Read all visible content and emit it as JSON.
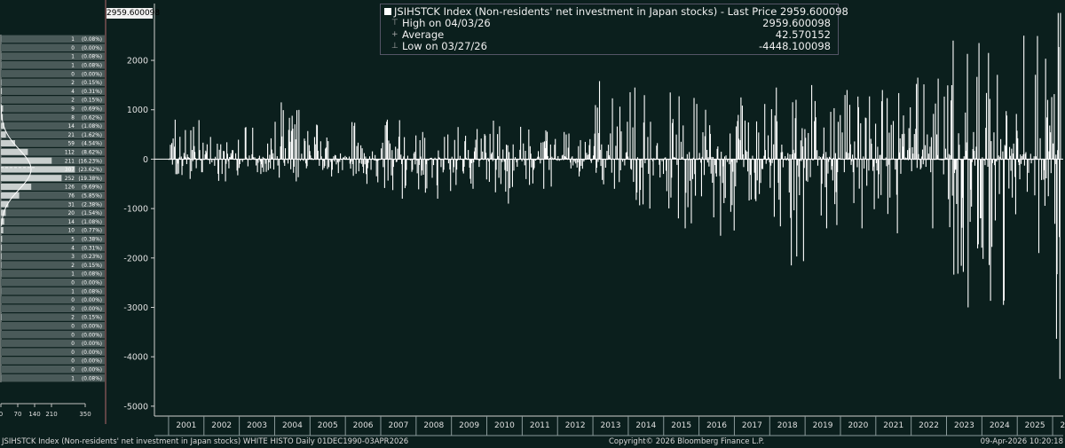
{
  "legend": {
    "title": "JSIHSTCK Index (Non-residents' net investment in Japan stocks) - Last Price",
    "last_price": "2959.600098",
    "high_label": "High on 04/03/26",
    "high_value": "2959.600098",
    "average_label": "Average",
    "average_value": "42.570152",
    "low_label": "Low on 03/27/26",
    "low_value": "-4448.100098"
  },
  "last_price_tag": "2959.600098",
  "footer": {
    "left": "JSIHSTCK Index (Non-residents' net investment in Japan stocks) WHITE HISTO Daily 01DEC1990-03APR2026",
    "center": "Copyright© 2026 Bloomberg Finance L.P.",
    "right": "09-Apr-2026 10:20:18"
  },
  "colors": {
    "background": "#0b1f1d",
    "bars": "#ffffff",
    "histogram_row": "#4a5a59"
  },
  "chart_data": [
    {
      "type": "bar",
      "series": [
        {
          "name": "JSIHSTCK Index",
          "color": "#ffffff"
        }
      ],
      "x_ticks": [
        "2001",
        "2002",
        "2003",
        "2004",
        "2005",
        "2006",
        "2007",
        "2008",
        "2009",
        "2010",
        "2011",
        "2012",
        "2013",
        "2014",
        "2015",
        "2016",
        "2017",
        "2018",
        "2019",
        "2020",
        "2021",
        "2022",
        "2023",
        "2024",
        "2025",
        "2026"
      ],
      "y_ticks": [
        2000,
        1000,
        0,
        -1000,
        -2000,
        -3000,
        -4000,
        -5000
      ],
      "ylim": [
        -5200,
        3150
      ],
      "xlim": [
        2000.6,
        2026.3
      ],
      "grid": false,
      "annual_range": [
        {
          "year": 2001,
          "max": 800,
          "min": -400
        },
        {
          "year": 2002,
          "max": 450,
          "min": -450
        },
        {
          "year": 2003,
          "max": 650,
          "min": -300
        },
        {
          "year": 2004,
          "max": 1150,
          "min": -450
        },
        {
          "year": 2005,
          "max": 700,
          "min": -350
        },
        {
          "year": 2006,
          "max": 750,
          "min": -500
        },
        {
          "year": 2007,
          "max": 800,
          "min": -800
        },
        {
          "year": 2008,
          "max": 550,
          "min": -800
        },
        {
          "year": 2009,
          "max": 650,
          "min": -600
        },
        {
          "year": 2010,
          "max": 780,
          "min": -900
        },
        {
          "year": 2011,
          "max": 600,
          "min": -600
        },
        {
          "year": 2012,
          "max": 550,
          "min": -350
        },
        {
          "year": 2013,
          "max": 1580,
          "min": -600
        },
        {
          "year": 2014,
          "max": 1450,
          "min": -1000
        },
        {
          "year": 2015,
          "max": 1350,
          "min": -1400
        },
        {
          "year": 2016,
          "max": 1000,
          "min": -1550
        },
        {
          "year": 2017,
          "max": 1250,
          "min": -850
        },
        {
          "year": 2018,
          "max": 1450,
          "min": -2150
        },
        {
          "year": 2019,
          "max": 1500,
          "min": -1400
        },
        {
          "year": 2020,
          "max": 1400,
          "min": -1400
        },
        {
          "year": 2021,
          "max": 1400,
          "min": -1500
        },
        {
          "year": 2022,
          "max": 1650,
          "min": -1400
        },
        {
          "year": 2023,
          "max": 2400,
          "min": -3000
        },
        {
          "year": 2024,
          "max": 2150,
          "min": -2950
        },
        {
          "year": 2025,
          "max": 2500,
          "min": -1900
        },
        {
          "year": 2026,
          "max": 2959.6,
          "min": -4448.1
        }
      ],
      "last_value": 2959.600098
    },
    {
      "type": "bar",
      "orientation": "horizontal",
      "x_ticks": [
        0,
        70,
        140,
        210,
        350
      ],
      "bins": [
        {
          "count": 1,
          "pct": "(0.08%)"
        },
        {
          "count": 0,
          "pct": "(0.00%)"
        },
        {
          "count": 1,
          "pct": "(0.08%)"
        },
        {
          "count": 1,
          "pct": "(0.08%)"
        },
        {
          "count": 0,
          "pct": "(0.00%)"
        },
        {
          "count": 2,
          "pct": "(0.15%)"
        },
        {
          "count": 4,
          "pct": "(0.31%)"
        },
        {
          "count": 2,
          "pct": "(0.15%)"
        },
        {
          "count": 9,
          "pct": "(0.69%)"
        },
        {
          "count": 8,
          "pct": "(0.62%)"
        },
        {
          "count": 14,
          "pct": "(1.08%)"
        },
        {
          "count": 21,
          "pct": "(1.62%)"
        },
        {
          "count": 59,
          "pct": "(4.54%)"
        },
        {
          "count": 112,
          "pct": "(8.62%)"
        },
        {
          "count": 211,
          "pct": "(16.23%)"
        },
        {
          "count": 307,
          "pct": "(23.62%)"
        },
        {
          "count": 252,
          "pct": "(19.38%)"
        },
        {
          "count": 126,
          "pct": "(9.69%)"
        },
        {
          "count": 76,
          "pct": "(5.85%)"
        },
        {
          "count": 31,
          "pct": "(2.38%)"
        },
        {
          "count": 20,
          "pct": "(1.54%)"
        },
        {
          "count": 14,
          "pct": "(1.08%)"
        },
        {
          "count": 10,
          "pct": "(0.77%)"
        },
        {
          "count": 5,
          "pct": "(0.38%)"
        },
        {
          "count": 4,
          "pct": "(0.31%)"
        },
        {
          "count": 3,
          "pct": "(0.23%)"
        },
        {
          "count": 2,
          "pct": "(0.15%)"
        },
        {
          "count": 1,
          "pct": "(0.08%)"
        },
        {
          "count": 0,
          "pct": "(0.00%)"
        },
        {
          "count": 1,
          "pct": "(0.08%)"
        },
        {
          "count": 0,
          "pct": "(0.00%)"
        },
        {
          "count": 0,
          "pct": "(0.00%)"
        },
        {
          "count": 2,
          "pct": "(0.15%)"
        },
        {
          "count": 0,
          "pct": "(0.00%)"
        },
        {
          "count": 0,
          "pct": "(0.00%)"
        },
        {
          "count": 0,
          "pct": "(0.00%)"
        },
        {
          "count": 0,
          "pct": "(0.00%)"
        },
        {
          "count": 0,
          "pct": "(0.00%)"
        },
        {
          "count": 0,
          "pct": "(0.00%)"
        },
        {
          "count": 1,
          "pct": "(0.08%)"
        }
      ]
    }
  ]
}
